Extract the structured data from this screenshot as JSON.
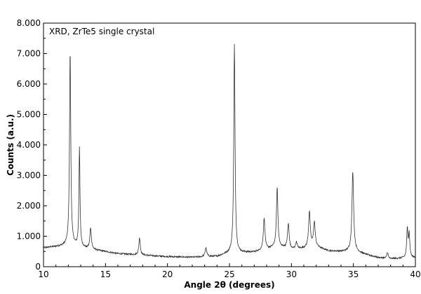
{
  "chart_data": {
    "type": "line",
    "annotation": "XRD, ZrTe5 single crystal",
    "xlabel": "Angle 2θ (degrees)",
    "ylabel": "Counts (a.u.)",
    "xlim": [
      10,
      40
    ],
    "ylim": [
      0,
      8000
    ],
    "x_ticks": [
      10,
      15,
      20,
      25,
      30,
      35,
      40
    ],
    "x_tick_labels": [
      "10",
      "15",
      "20",
      "25",
      "30",
      "35",
      "40"
    ],
    "y_ticks": [
      0,
      1000,
      2000,
      3000,
      4000,
      5000,
      6000,
      7000,
      8000
    ],
    "y_tick_labels": [
      "0",
      "1.000",
      "2.000",
      "3.000",
      "4.000",
      "5.000",
      "6.000",
      "7.000",
      "8.000"
    ],
    "grid": false,
    "legend": "none",
    "line_color": "#333333",
    "baseline": [
      [
        10,
        620
      ],
      [
        11.5,
        680
      ],
      [
        12,
        720
      ],
      [
        14,
        560
      ],
      [
        16,
        430
      ],
      [
        18,
        380
      ],
      [
        20,
        330
      ],
      [
        22,
        310
      ],
      [
        24,
        340
      ],
      [
        25.2,
        480
      ],
      [
        26,
        460
      ],
      [
        27,
        480
      ],
      [
        28,
        560
      ],
      [
        28.6,
        640
      ],
      [
        29.4,
        620
      ],
      [
        30,
        560
      ],
      [
        31,
        600
      ],
      [
        31.8,
        680
      ],
      [
        33,
        520
      ],
      [
        34,
        500
      ],
      [
        35,
        520
      ],
      [
        36,
        400
      ],
      [
        37,
        300
      ],
      [
        38,
        260
      ],
      [
        39,
        280
      ],
      [
        40,
        300
      ]
    ],
    "peaks": [
      {
        "x": 12.15,
        "y": 7050,
        "width": 0.06
      },
      {
        "x": 12.9,
        "y": 3900,
        "width": 0.05
      },
      {
        "x": 13.8,
        "y": 1270,
        "width": 0.07
      },
      {
        "x": 17.75,
        "y": 950,
        "width": 0.07
      },
      {
        "x": 23.1,
        "y": 620,
        "width": 0.08
      },
      {
        "x": 25.4,
        "y": 7300,
        "width": 0.06
      },
      {
        "x": 27.8,
        "y": 1580,
        "width": 0.08
      },
      {
        "x": 28.85,
        "y": 2600,
        "width": 0.07
      },
      {
        "x": 29.75,
        "y": 1400,
        "width": 0.08
      },
      {
        "x": 30.4,
        "y": 800,
        "width": 0.08
      },
      {
        "x": 31.45,
        "y": 1800,
        "width": 0.08
      },
      {
        "x": 31.85,
        "y": 1450,
        "width": 0.08
      },
      {
        "x": 34.95,
        "y": 3120,
        "width": 0.08
      },
      {
        "x": 37.75,
        "y": 480,
        "width": 0.06
      },
      {
        "x": 39.35,
        "y": 1220,
        "width": 0.06
      },
      {
        "x": 39.5,
        "y": 1050,
        "width": 0.06
      }
    ]
  }
}
